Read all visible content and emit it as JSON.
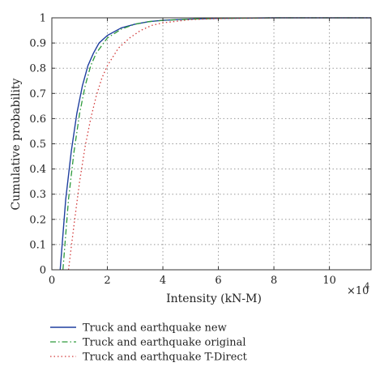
{
  "chart_data": {
    "type": "line",
    "title": "",
    "xlabel": "Intensity (kN-M)",
    "ylabel": "Cumulative probability",
    "x_multiplier_label": "×10",
    "x_multiplier_exp": "4",
    "xlim": [
      0,
      11.5
    ],
    "ylim": [
      0,
      1
    ],
    "xticks": [
      0,
      2,
      4,
      6,
      8,
      10
    ],
    "yticks": [
      0,
      0.1,
      0.2,
      0.3,
      0.4,
      0.5,
      0.6,
      0.7,
      0.8,
      0.9,
      1
    ],
    "xtick_labels": [
      "0",
      "2",
      "4",
      "6",
      "8",
      "10"
    ],
    "ytick_labels": [
      "0",
      "0.1",
      "0.2",
      "0.3",
      "0.4",
      "0.5",
      "0.6",
      "0.7",
      "0.8",
      "0.9",
      "1"
    ],
    "grid": true,
    "legend_position": "bottom-left, below axes",
    "series": [
      {
        "name": "Truck and earthquake new",
        "color": "#1f3f9f",
        "style": "solid",
        "x": [
          0.3,
          0.5,
          0.7,
          0.9,
          1.1,
          1.3,
          1.5,
          1.7,
          2.0,
          2.5,
          3.0,
          3.5,
          4.0,
          5.0,
          6.0,
          8.0,
          10.0,
          11.5
        ],
        "y": [
          0.0,
          0.28,
          0.47,
          0.62,
          0.73,
          0.81,
          0.86,
          0.9,
          0.93,
          0.96,
          0.975,
          0.985,
          0.99,
          0.995,
          0.998,
          1.0,
          1.0,
          1.0
        ]
      },
      {
        "name": "Truck and earthquake original",
        "color": "#2e9a3c",
        "style": "dashdot",
        "x": [
          0.4,
          0.6,
          0.8,
          1.0,
          1.2,
          1.4,
          1.6,
          1.8,
          2.0,
          2.5,
          3.0,
          3.5,
          4.0,
          5.0,
          6.0,
          8.0,
          10.0,
          11.5
        ],
        "y": [
          0.0,
          0.28,
          0.47,
          0.62,
          0.73,
          0.81,
          0.86,
          0.89,
          0.92,
          0.955,
          0.975,
          0.985,
          0.99,
          0.995,
          0.998,
          1.0,
          1.0,
          1.0
        ]
      },
      {
        "name": "Truck and earthquake T-Direct",
        "color": "#d23a3a",
        "style": "dotted",
        "x": [
          0.6,
          0.8,
          1.0,
          1.2,
          1.4,
          1.6,
          1.8,
          2.0,
          2.4,
          2.8,
          3.2,
          3.6,
          4.0,
          5.0,
          6.0,
          8.0,
          10.0,
          11.5
        ],
        "y": [
          0.0,
          0.18,
          0.35,
          0.49,
          0.6,
          0.69,
          0.76,
          0.81,
          0.88,
          0.92,
          0.95,
          0.97,
          0.98,
          0.993,
          0.997,
          1.0,
          1.0,
          1.0
        ]
      }
    ]
  }
}
